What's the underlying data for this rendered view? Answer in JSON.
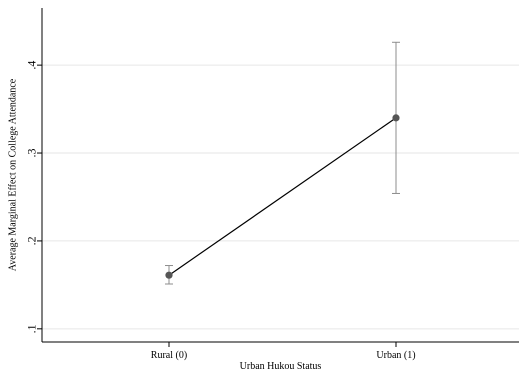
{
  "chart_data": {
    "type": "line",
    "title": "",
    "xlabel": "Urban Hukou Status",
    "ylabel": "Average Marginal Effect on College Attendance",
    "categories": [
      "Rural (0)",
      "Urban (1)"
    ],
    "series": [
      {
        "values": [
          0.161,
          0.34
        ],
        "ci_low": [
          0.151,
          0.254
        ],
        "ci_high": [
          0.172,
          0.426
        ]
      }
    ],
    "yticks": [
      0.1,
      0.2,
      0.3,
      0.4
    ],
    "ytick_labels": [
      ".1",
      ".2",
      ".3",
      ".4"
    ],
    "ylim": [
      0.085,
      0.465
    ],
    "grid": true,
    "colors": {
      "line": "#000000",
      "marker": "#555555",
      "errorbar": "#8c8c8c",
      "grid": "#e6e6e6",
      "axis": "#000000"
    }
  }
}
